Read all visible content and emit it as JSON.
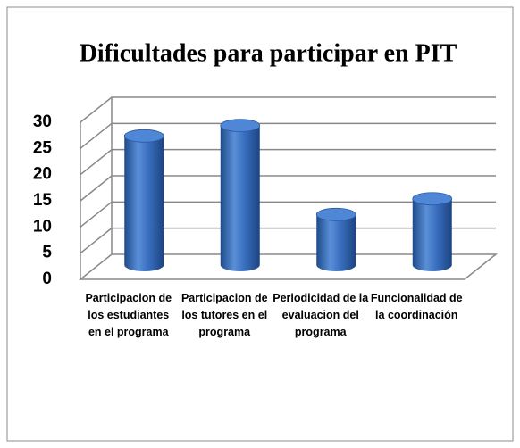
{
  "chart_data": {
    "type": "bar",
    "title": "Dificultades para participar en PIT",
    "categories": [
      "Participacion de los estudiantes en el programa",
      "Participacion de los tutores en el programa",
      "Periodicidad de la evaluacion del programa",
      "Funcionalidad de la coordinación"
    ],
    "values": [
      25,
      27,
      10,
      13
    ],
    "color": "#3a70c0",
    "ylim": [
      0,
      30
    ],
    "yticks": [
      0,
      5,
      10,
      15,
      20,
      25,
      30
    ],
    "grid": true
  }
}
